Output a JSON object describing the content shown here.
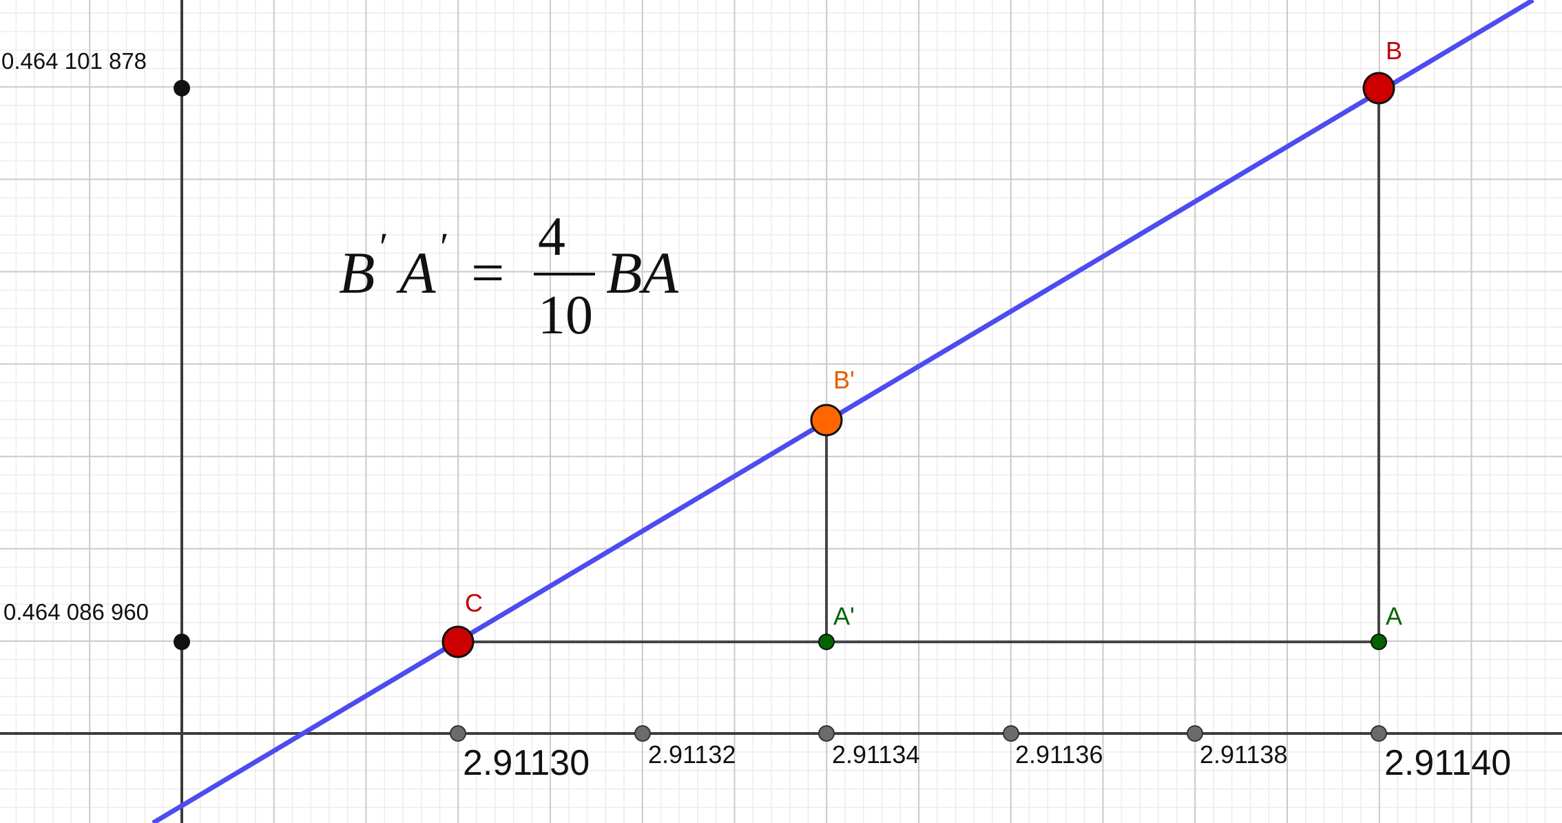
{
  "colors": {
    "background": "#ffffff",
    "grid_minor": "#ececec",
    "grid_major": "#c9c9c9",
    "axis": "#3c3c3c",
    "line": "#4c4cf0",
    "segment": "#454545",
    "point_red": "#cc0000",
    "point_orange": "#ff6600",
    "point_green": "#006400",
    "point_dark": "#111111",
    "tick_point": "#6b6b6b",
    "label_red": "#c00000",
    "label_orange": "#e65c00",
    "label_green": "#006400",
    "text": "#111111"
  },
  "y_axis": {
    "tick_labels": [
      "0.464 101 878",
      "0.464 086 960"
    ]
  },
  "x_axis": {
    "tick_labels": [
      "2.91130",
      "2.91132",
      "2.91134",
      "2.91136",
      "2.91138",
      "2.91140"
    ]
  },
  "points": {
    "B": "B",
    "B_prime": "B'",
    "C": "C",
    "A_prime": "A'",
    "A": "A"
  },
  "formula": {
    "lhs_b": "B",
    "lhs_a": "A",
    "prime": "′",
    "equals": "=",
    "numerator": "4",
    "denominator": "10",
    "rhs": "BA"
  }
}
